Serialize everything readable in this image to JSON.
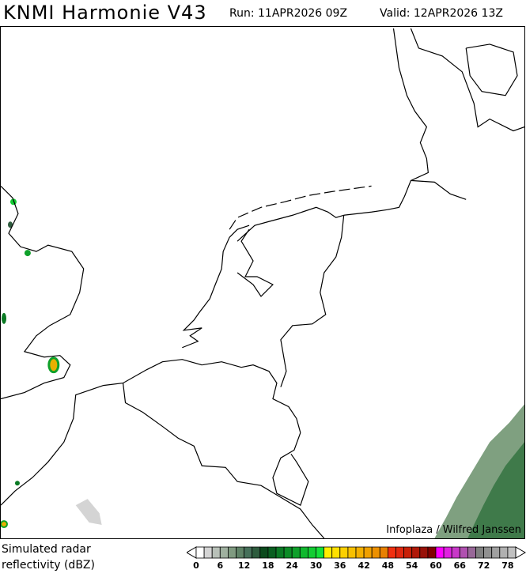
{
  "header": {
    "title": "KNMI Harmonie V43",
    "run": "Run: 11APR2026 09Z",
    "valid": "Valid: 12APR2026 13Z"
  },
  "map": {
    "credit": "Infoplaza / Wilfred Janssen",
    "precip_color_light": "#7fa080",
    "precip_color_dark": "#3f7a4a"
  },
  "legend": {
    "label_line1": "Simulated radar",
    "label_line2": "reflectivity (dBZ)",
    "ticks": [
      "0",
      "6",
      "12",
      "18",
      "24",
      "30",
      "36",
      "42",
      "48",
      "54",
      "60",
      "66",
      "72",
      "78"
    ],
    "colors": [
      "#ffffff",
      "#d4d4d4",
      "#b8c0b8",
      "#9fb09f",
      "#7f9a80",
      "#5e8266",
      "#46705a",
      "#2e5c3e",
      "#0b4a1c",
      "#0a5e20",
      "#0b7a24",
      "#0c8c26",
      "#0ea02a",
      "#10b82e",
      "#12cc32",
      "#14e038",
      "#ffee00",
      "#ffe000",
      "#fcd000",
      "#f8c000",
      "#f4b000",
      "#f0a000",
      "#ec9000",
      "#e88000",
      "#f03010",
      "#e02810",
      "#c82008",
      "#b01808",
      "#981008",
      "#800000",
      "#ff00ff",
      "#e020e0",
      "#c838c8",
      "#b050b0",
      "#986898",
      "#808080",
      "#909090",
      "#a0a0a0",
      "#b0b0b0",
      "#c0c0c0"
    ]
  }
}
